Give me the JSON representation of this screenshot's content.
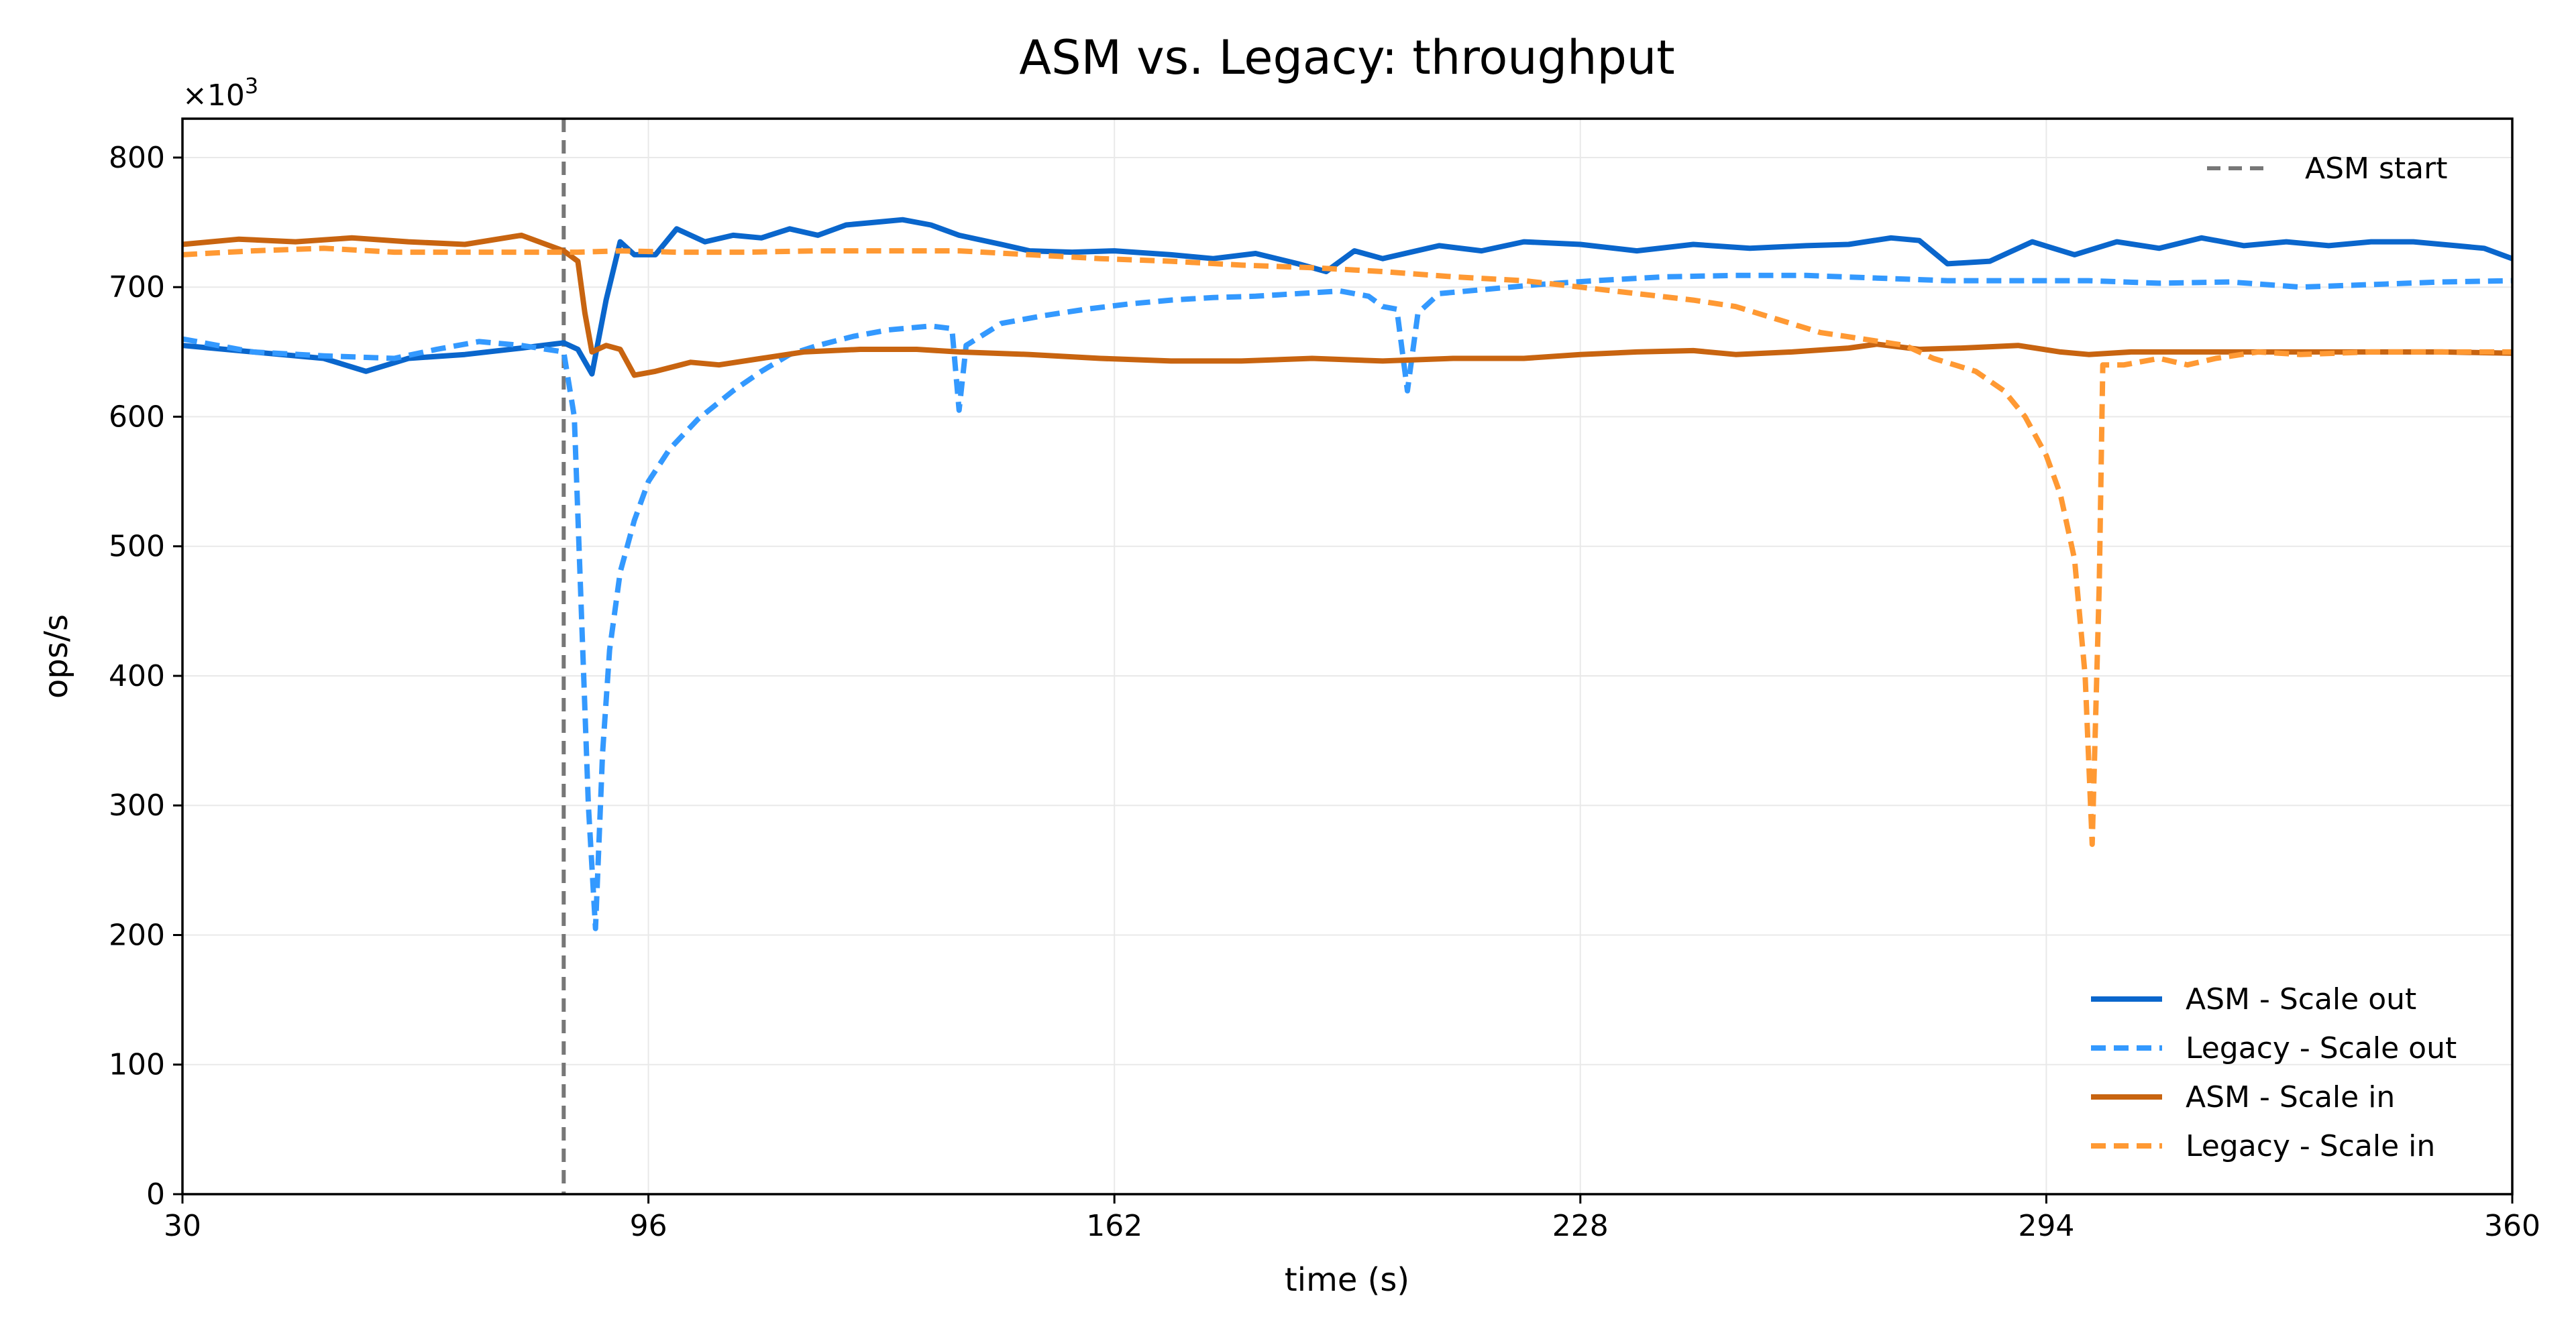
{
  "chart_data": {
    "type": "line",
    "title": "ASM vs. Legacy: throughput",
    "xlabel": "time (s)",
    "ylabel": "ops/s",
    "y_multiplier_label": "×10",
    "y_multiplier_exponent": "3",
    "xlim": [
      30,
      360
    ],
    "ylim": [
      0,
      830
    ],
    "xticks": [
      30,
      96,
      162,
      228,
      294,
      360
    ],
    "yticks": [
      0,
      100,
      200,
      300,
      400,
      500,
      600,
      700,
      800
    ],
    "grid": true,
    "vline": {
      "x": 84,
      "label": "ASM start",
      "color": "#777777",
      "style": "dashed"
    },
    "legend_top": {
      "placement": "top-right",
      "entries": [
        "ASM start"
      ]
    },
    "legend_bottom": {
      "placement": "bottom-right"
    },
    "series": [
      {
        "name": "ASM - Scale out",
        "color": "#0a66cc",
        "style": "solid",
        "points": [
          [
            30,
            655
          ],
          [
            40,
            650
          ],
          [
            50,
            645
          ],
          [
            56,
            635
          ],
          [
            62,
            645
          ],
          [
            70,
            648
          ],
          [
            78,
            653
          ],
          [
            84,
            657
          ],
          [
            86,
            652
          ],
          [
            88,
            633
          ],
          [
            90,
            690
          ],
          [
            92,
            735
          ],
          [
            94,
            725
          ],
          [
            97,
            725
          ],
          [
            100,
            745
          ],
          [
            104,
            735
          ],
          [
            108,
            740
          ],
          [
            112,
            738
          ],
          [
            116,
            745
          ],
          [
            120,
            740
          ],
          [
            124,
            748
          ],
          [
            128,
            750
          ],
          [
            132,
            752
          ],
          [
            136,
            748
          ],
          [
            140,
            740
          ],
          [
            146,
            733
          ],
          [
            150,
            728
          ],
          [
            156,
            727
          ],
          [
            162,
            728
          ],
          [
            170,
            725
          ],
          [
            176,
            722
          ],
          [
            182,
            726
          ],
          [
            188,
            718
          ],
          [
            192,
            712
          ],
          [
            196,
            728
          ],
          [
            200,
            722
          ],
          [
            208,
            732
          ],
          [
            214,
            728
          ],
          [
            220,
            735
          ],
          [
            228,
            733
          ],
          [
            236,
            728
          ],
          [
            244,
            733
          ],
          [
            252,
            730
          ],
          [
            260,
            732
          ],
          [
            266,
            733
          ],
          [
            272,
            738
          ],
          [
            276,
            736
          ],
          [
            280,
            718
          ],
          [
            286,
            720
          ],
          [
            292,
            735
          ],
          [
            298,
            725
          ],
          [
            304,
            735
          ],
          [
            310,
            730
          ],
          [
            316,
            738
          ],
          [
            322,
            732
          ],
          [
            328,
            735
          ],
          [
            334,
            732
          ],
          [
            340,
            735
          ],
          [
            346,
            735
          ],
          [
            352,
            732
          ],
          [
            356,
            730
          ],
          [
            360,
            722
          ]
        ]
      },
      {
        "name": "Legacy - Scale out",
        "color": "#3399ff",
        "style": "dashed",
        "points": [
          [
            30,
            660
          ],
          [
            40,
            650
          ],
          [
            50,
            647
          ],
          [
            60,
            645
          ],
          [
            66,
            652
          ],
          [
            72,
            658
          ],
          [
            78,
            655
          ],
          [
            84,
            650
          ],
          [
            85.5,
            600
          ],
          [
            86.5,
            450
          ],
          [
            87.5,
            300
          ],
          [
            88.5,
            205
          ],
          [
            89.5,
            340
          ],
          [
            90.5,
            420
          ],
          [
            92,
            480
          ],
          [
            94,
            520
          ],
          [
            96,
            550
          ],
          [
            99,
            575
          ],
          [
            103,
            598
          ],
          [
            108,
            620
          ],
          [
            112,
            635
          ],
          [
            116,
            648
          ],
          [
            120,
            655
          ],
          [
            125,
            662
          ],
          [
            130,
            667
          ],
          [
            136,
            670
          ],
          [
            139,
            668
          ],
          [
            140,
            605
          ],
          [
            141,
            655
          ],
          [
            146,
            672
          ],
          [
            152,
            678
          ],
          [
            158,
            683
          ],
          [
            164,
            687
          ],
          [
            170,
            690
          ],
          [
            176,
            692
          ],
          [
            182,
            693
          ],
          [
            188,
            695
          ],
          [
            194,
            697
          ],
          [
            198,
            693
          ],
          [
            200,
            685
          ],
          [
            202,
            683
          ],
          [
            203.5,
            620
          ],
          [
            205,
            680
          ],
          [
            208,
            695
          ],
          [
            214,
            698
          ],
          [
            222,
            702
          ],
          [
            230,
            705
          ],
          [
            240,
            708
          ],
          [
            250,
            709
          ],
          [
            260,
            709
          ],
          [
            270,
            707
          ],
          [
            280,
            705
          ],
          [
            290,
            705
          ],
          [
            300,
            705
          ],
          [
            310,
            703
          ],
          [
            320,
            704
          ],
          [
            330,
            700
          ],
          [
            340,
            702
          ],
          [
            350,
            704
          ],
          [
            360,
            705
          ]
        ]
      },
      {
        "name": "ASM - Scale in",
        "color": "#c86410",
        "style": "solid",
        "points": [
          [
            30,
            733
          ],
          [
            38,
            737
          ],
          [
            46,
            735
          ],
          [
            54,
            738
          ],
          [
            62,
            735
          ],
          [
            70,
            733
          ],
          [
            78,
            740
          ],
          [
            84,
            728
          ],
          [
            86,
            720
          ],
          [
            87,
            680
          ],
          [
            88,
            650
          ],
          [
            90,
            655
          ],
          [
            92,
            652
          ],
          [
            94,
            632
          ],
          [
            97,
            635
          ],
          [
            102,
            642
          ],
          [
            106,
            640
          ],
          [
            112,
            645
          ],
          [
            118,
            650
          ],
          [
            126,
            652
          ],
          [
            134,
            652
          ],
          [
            140,
            650
          ],
          [
            150,
            648
          ],
          [
            160,
            645
          ],
          [
            170,
            643
          ],
          [
            180,
            643
          ],
          [
            190,
            645
          ],
          [
            200,
            643
          ],
          [
            210,
            645
          ],
          [
            220,
            645
          ],
          [
            228,
            648
          ],
          [
            236,
            650
          ],
          [
            244,
            651
          ],
          [
            250,
            648
          ],
          [
            258,
            650
          ],
          [
            266,
            653
          ],
          [
            270,
            656
          ],
          [
            276,
            652
          ],
          [
            282,
            653
          ],
          [
            290,
            655
          ],
          [
            296,
            650
          ],
          [
            300,
            648
          ],
          [
            306,
            650
          ],
          [
            312,
            650
          ],
          [
            320,
            650
          ],
          [
            330,
            650
          ],
          [
            340,
            650
          ],
          [
            350,
            650
          ],
          [
            360,
            649
          ]
        ]
      },
      {
        "name": "Legacy - Scale in",
        "color": "#ff9933",
        "style": "dashed",
        "points": [
          [
            30,
            725
          ],
          [
            40,
            728
          ],
          [
            50,
            730
          ],
          [
            60,
            727
          ],
          [
            70,
            727
          ],
          [
            80,
            727
          ],
          [
            86,
            727
          ],
          [
            92,
            728
          ],
          [
            100,
            727
          ],
          [
            110,
            727
          ],
          [
            120,
            728
          ],
          [
            130,
            728
          ],
          [
            140,
            728
          ],
          [
            150,
            725
          ],
          [
            160,
            722
          ],
          [
            170,
            720
          ],
          [
            180,
            717
          ],
          [
            190,
            715
          ],
          [
            200,
            712
          ],
          [
            210,
            708
          ],
          [
            220,
            705
          ],
          [
            228,
            700
          ],
          [
            236,
            695
          ],
          [
            244,
            690
          ],
          [
            250,
            685
          ],
          [
            256,
            675
          ],
          [
            262,
            665
          ],
          [
            268,
            660
          ],
          [
            274,
            655
          ],
          [
            278,
            645
          ],
          [
            284,
            635
          ],
          [
            288,
            620
          ],
          [
            291,
            600
          ],
          [
            294,
            570
          ],
          [
            296,
            540
          ],
          [
            298,
            490
          ],
          [
            299.5,
            400
          ],
          [
            300.5,
            270
          ],
          [
            301.5,
            470
          ],
          [
            302,
            640
          ],
          [
            305,
            640
          ],
          [
            310,
            645
          ],
          [
            314,
            640
          ],
          [
            318,
            645
          ],
          [
            324,
            650
          ],
          [
            330,
            648
          ],
          [
            340,
            650
          ],
          [
            350,
            650
          ],
          [
            360,
            650
          ]
        ]
      }
    ]
  }
}
